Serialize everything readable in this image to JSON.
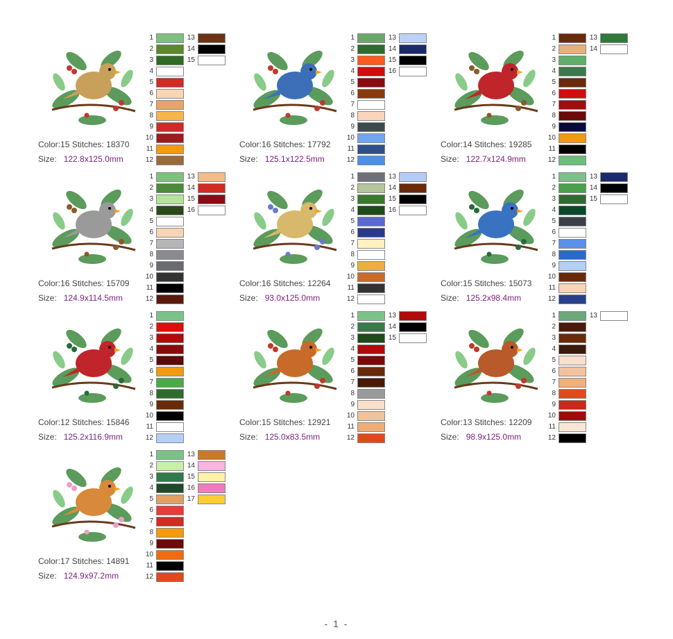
{
  "designs": [
    {
      "name": "cardinal-female-wreath",
      "bird": "#c8a05a",
      "accent": "#c0392b",
      "color_label": "Color:",
      "color_value": "15",
      "stitches_label": "Stitches:",
      "stitches_value": "18370",
      "size_label": "Size:",
      "size_value": "122.8x125.0mm",
      "chips": [
        [
          "1",
          "#7fbf7f"
        ],
        [
          "2",
          "#5a8a2a"
        ],
        [
          "3",
          "#2f6b23"
        ],
        [
          "4",
          "#ffffff"
        ],
        [
          "5",
          "#d12b22"
        ],
        [
          "6",
          "#f9d5b5"
        ],
        [
          "7",
          "#e9a46c"
        ],
        [
          "8",
          "#f7b54a"
        ],
        [
          "9",
          "#cf2a26"
        ],
        [
          "10",
          "#9c1b1c"
        ],
        [
          "11",
          "#f29a10"
        ],
        [
          "12",
          "#9a6a3b"
        ],
        [
          "13",
          "#6b3314"
        ],
        [
          "14",
          "#000000"
        ],
        [
          "15",
          "#ffffff"
        ]
      ]
    },
    {
      "name": "blue-jay-berries",
      "bird": "#3d6fb8",
      "accent": "#c0392b",
      "color_label": "Color:",
      "color_value": "16",
      "stitches_label": "Stitches:",
      "stitches_value": "17792",
      "size_label": "Size:",
      "size_value": "125.1x122.5mm",
      "chips": [
        [
          "1",
          "#6aa86a"
        ],
        [
          "2",
          "#2e6b2e"
        ],
        [
          "3",
          "#ff5a1f"
        ],
        [
          "4",
          "#d10d0d"
        ],
        [
          "5",
          "#8a0c13"
        ],
        [
          "6",
          "#8a3b0c"
        ],
        [
          "7",
          "#ffffff"
        ],
        [
          "8",
          "#f9d5bb"
        ],
        [
          "9",
          "#3d4a4c"
        ],
        [
          "10",
          "#6fa6ee"
        ],
        [
          "11",
          "#2e4f8a"
        ],
        [
          "12",
          "#4a90e8"
        ],
        [
          "13",
          "#bcd2f7"
        ],
        [
          "14",
          "#1a2a6a"
        ],
        [
          "15",
          "#000000"
        ],
        [
          "16",
          "#ffffff"
        ]
      ]
    },
    {
      "name": "cardinal-pine-cones",
      "bird": "#c0252b",
      "accent": "#8a5a2a",
      "color_label": "Color:",
      "color_value": "14",
      "stitches_label": "Stitches:",
      "stitches_value": "19285",
      "size_label": "Size:",
      "size_value": "122.7x124.9mm",
      "chips": [
        [
          "1",
          "#6b2a0c"
        ],
        [
          "2",
          "#e6b07a"
        ],
        [
          "3",
          "#5fae6a"
        ],
        [
          "4",
          "#3a7a4a"
        ],
        [
          "5",
          "#6b2a0c"
        ],
        [
          "6",
          "#d10d0d"
        ],
        [
          "7",
          "#a00d0d"
        ],
        [
          "8",
          "#6b0a0a"
        ],
        [
          "9",
          "#0a0a3a"
        ],
        [
          "10",
          "#f29a10"
        ],
        [
          "11",
          "#000000"
        ],
        [
          "12",
          "#6cbf7a"
        ],
        [
          "13",
          "#2e7a3a"
        ],
        [
          "14",
          "#ffffff"
        ]
      ]
    },
    {
      "name": "chickadee-holly",
      "bird": "#9a9a9a",
      "accent": "#8a5a2a",
      "color_label": "Color:",
      "color_value": "16",
      "stitches_label": "Stitches:",
      "stitches_value": "15709",
      "size_label": "Size:",
      "size_value": "124.9x114.5mm",
      "chips": [
        [
          "1",
          "#7cc27c"
        ],
        [
          "2",
          "#4a8a3a"
        ],
        [
          "3",
          "#b5e39a"
        ],
        [
          "4",
          "#2a4a1a"
        ],
        [
          "5",
          "#ffffff"
        ],
        [
          "6",
          "#f9d5b5"
        ],
        [
          "7",
          "#b5b5b8"
        ],
        [
          "8",
          "#8a8a90"
        ],
        [
          "9",
          "#6a6a72"
        ],
        [
          "10",
          "#333333"
        ],
        [
          "11",
          "#000000"
        ],
        [
          "12",
          "#5a1a0a"
        ],
        [
          "13",
          "#f2bd8a"
        ],
        [
          "14",
          "#d12b22"
        ],
        [
          "15",
          "#8a0c13"
        ],
        [
          "16",
          "#ffffff"
        ]
      ]
    },
    {
      "name": "chickadee-blossoms",
      "bird": "#d8b86a",
      "accent": "#6a7ac8",
      "color_label": "Color:",
      "color_value": "16",
      "stitches_label": "Stitches:",
      "stitches_value": "12264",
      "size_label": "Size:",
      "size_value": "93.0x125.0mm",
      "chips": [
        [
          "1",
          "#6f7078"
        ],
        [
          "2",
          "#b5c49a"
        ],
        [
          "3",
          "#3a7a2a"
        ],
        [
          "4",
          "#1f4a1a"
        ],
        [
          "5",
          "#5a6ad0"
        ],
        [
          "6",
          "#2a3a8a"
        ],
        [
          "7",
          "#fff2c0"
        ],
        [
          "8",
          "#ffffff"
        ],
        [
          "9",
          "#ebb040"
        ],
        [
          "10",
          "#c86a2a"
        ],
        [
          "11",
          "#333333"
        ],
        [
          "12",
          "#ffffff"
        ],
        [
          "13",
          "#b5ccf7"
        ],
        [
          "14",
          "#6a2a0a"
        ],
        [
          "15",
          "#000000"
        ],
        [
          "16",
          "#ffffff"
        ]
      ]
    },
    {
      "name": "blue-jay-pine",
      "bird": "#3a72c2",
      "accent": "#2a6a3a",
      "color_label": "Color:",
      "color_value": "15",
      "stitches_label": "Stitches:",
      "stitches_value": "15073",
      "size_label": "Size:",
      "size_value": "125.2x98.4mm",
      "chips": [
        [
          "1",
          "#7cbf88"
        ],
        [
          "2",
          "#4aa04a"
        ],
        [
          "3",
          "#2f6b2f"
        ],
        [
          "4",
          "#0a4a2a"
        ],
        [
          "5",
          "#3a3f48"
        ],
        [
          "6",
          "#ffffff"
        ],
        [
          "7",
          "#5a90ea"
        ],
        [
          "8",
          "#2a6ad0"
        ],
        [
          "9",
          "#b5cff5"
        ],
        [
          "10",
          "#6a2a0a"
        ],
        [
          "11",
          "#f9d5b5"
        ],
        [
          "12",
          "#2a3f8a"
        ],
        [
          "13",
          "#1a2a6a"
        ],
        [
          "14",
          "#000000"
        ],
        [
          "15",
          "#ffffff"
        ]
      ]
    },
    {
      "name": "cardinal-pine-branch",
      "bird": "#c0252b",
      "accent": "#2a6a3a",
      "color_label": "Color:",
      "color_value": "12",
      "stitches_label": "Stitches:",
      "stitches_value": "15846",
      "size_label": "Size:",
      "size_value": "125.2x116.9mm",
      "chips": [
        [
          "1",
          "#7cc288"
        ],
        [
          "2",
          "#e00d0d"
        ],
        [
          "3",
          "#b00a0a"
        ],
        [
          "4",
          "#8a0a0a"
        ],
        [
          "5",
          "#5a0a0a"
        ],
        [
          "6",
          "#f29a10"
        ],
        [
          "7",
          "#4aaa4a"
        ],
        [
          "8",
          "#2f6b2f"
        ],
        [
          "9",
          "#6a2a0a"
        ],
        [
          "10",
          "#000000"
        ],
        [
          "11",
          "#ffffff"
        ],
        [
          "12",
          "#b5cff5"
        ]
      ]
    },
    {
      "name": "robin-holly",
      "bird": "#c86a2a",
      "accent": "#c0392b",
      "color_label": "Color:",
      "color_value": "15",
      "stitches_label": "Stitches:",
      "stitches_value": "12921",
      "size_label": "Size:",
      "size_value": "125.0x83.5mm",
      "chips": [
        [
          "1",
          "#7cc288"
        ],
        [
          "2",
          "#3a7a4a"
        ],
        [
          "3",
          "#1f4a1a"
        ],
        [
          "4",
          "#b00a0a"
        ],
        [
          "5",
          "#7a0a0a"
        ],
        [
          "6",
          "#6a2a0a"
        ],
        [
          "7",
          "#4a1a0a"
        ],
        [
          "8",
          "#9a9a9a"
        ],
        [
          "9",
          "#f9e0cc"
        ],
        [
          "10",
          "#f2c29a"
        ],
        [
          "11",
          "#efac74"
        ],
        [
          "12",
          "#e04a1a"
        ],
        [
          "13",
          "#b00a0a"
        ],
        [
          "14",
          "#000000"
        ],
        [
          "15",
          "#ffffff"
        ]
      ]
    },
    {
      "name": "robin-snowy-berries",
      "bird": "#b85a2a",
      "accent": "#c0392b",
      "color_label": "Color:",
      "color_value": "13",
      "stitches_label": "Stitches:",
      "stitches_value": "12209",
      "size_label": "Size:",
      "size_value": "98.9x125.0mm",
      "chips": [
        [
          "1",
          "#6aa87a"
        ],
        [
          "2",
          "#4a1a0a"
        ],
        [
          "3",
          "#6a2a0a"
        ],
        [
          "4",
          "#3a1a0a"
        ],
        [
          "5",
          "#f9e0cc"
        ],
        [
          "6",
          "#f2c29a"
        ],
        [
          "7",
          "#efb07a"
        ],
        [
          "8",
          "#e04a1a"
        ],
        [
          "9",
          "#c82a1a"
        ],
        [
          "10",
          "#a00a0a"
        ],
        [
          "11",
          "#f9e6d6"
        ],
        [
          "12",
          "#000000"
        ],
        [
          "13",
          "#ffffff"
        ]
      ]
    },
    {
      "name": "cardinal-female-flower",
      "bird": "#d88a3a",
      "accent": "#e8a0c8",
      "color_label": "Color:",
      "color_value": "17",
      "stitches_label": "Stitches:",
      "stitches_value": "14891",
      "size_label": "Size:",
      "size_value": "124.9x97.2mm",
      "chips": [
        [
          "1",
          "#7cc288"
        ],
        [
          "2",
          "#c8f0a8"
        ],
        [
          "3",
          "#2f7a4a"
        ],
        [
          "4",
          "#1f4a2a"
        ],
        [
          "5",
          "#e3a060"
        ],
        [
          "6",
          "#ea3a3a"
        ],
        [
          "7",
          "#d12b22"
        ],
        [
          "8",
          "#f29a10"
        ],
        [
          "9",
          "#6a0a0a"
        ],
        [
          "10",
          "#f26a10"
        ],
        [
          "11",
          "#000000"
        ],
        [
          "12",
          "#e04a1a"
        ],
        [
          "13",
          "#c87a2a"
        ],
        [
          "14",
          "#f7b5e0"
        ],
        [
          "15",
          "#fff2a8"
        ],
        [
          "16",
          "#f07ac0"
        ],
        [
          "17",
          "#ffcc33"
        ]
      ]
    }
  ],
  "footer": "- 1 -"
}
